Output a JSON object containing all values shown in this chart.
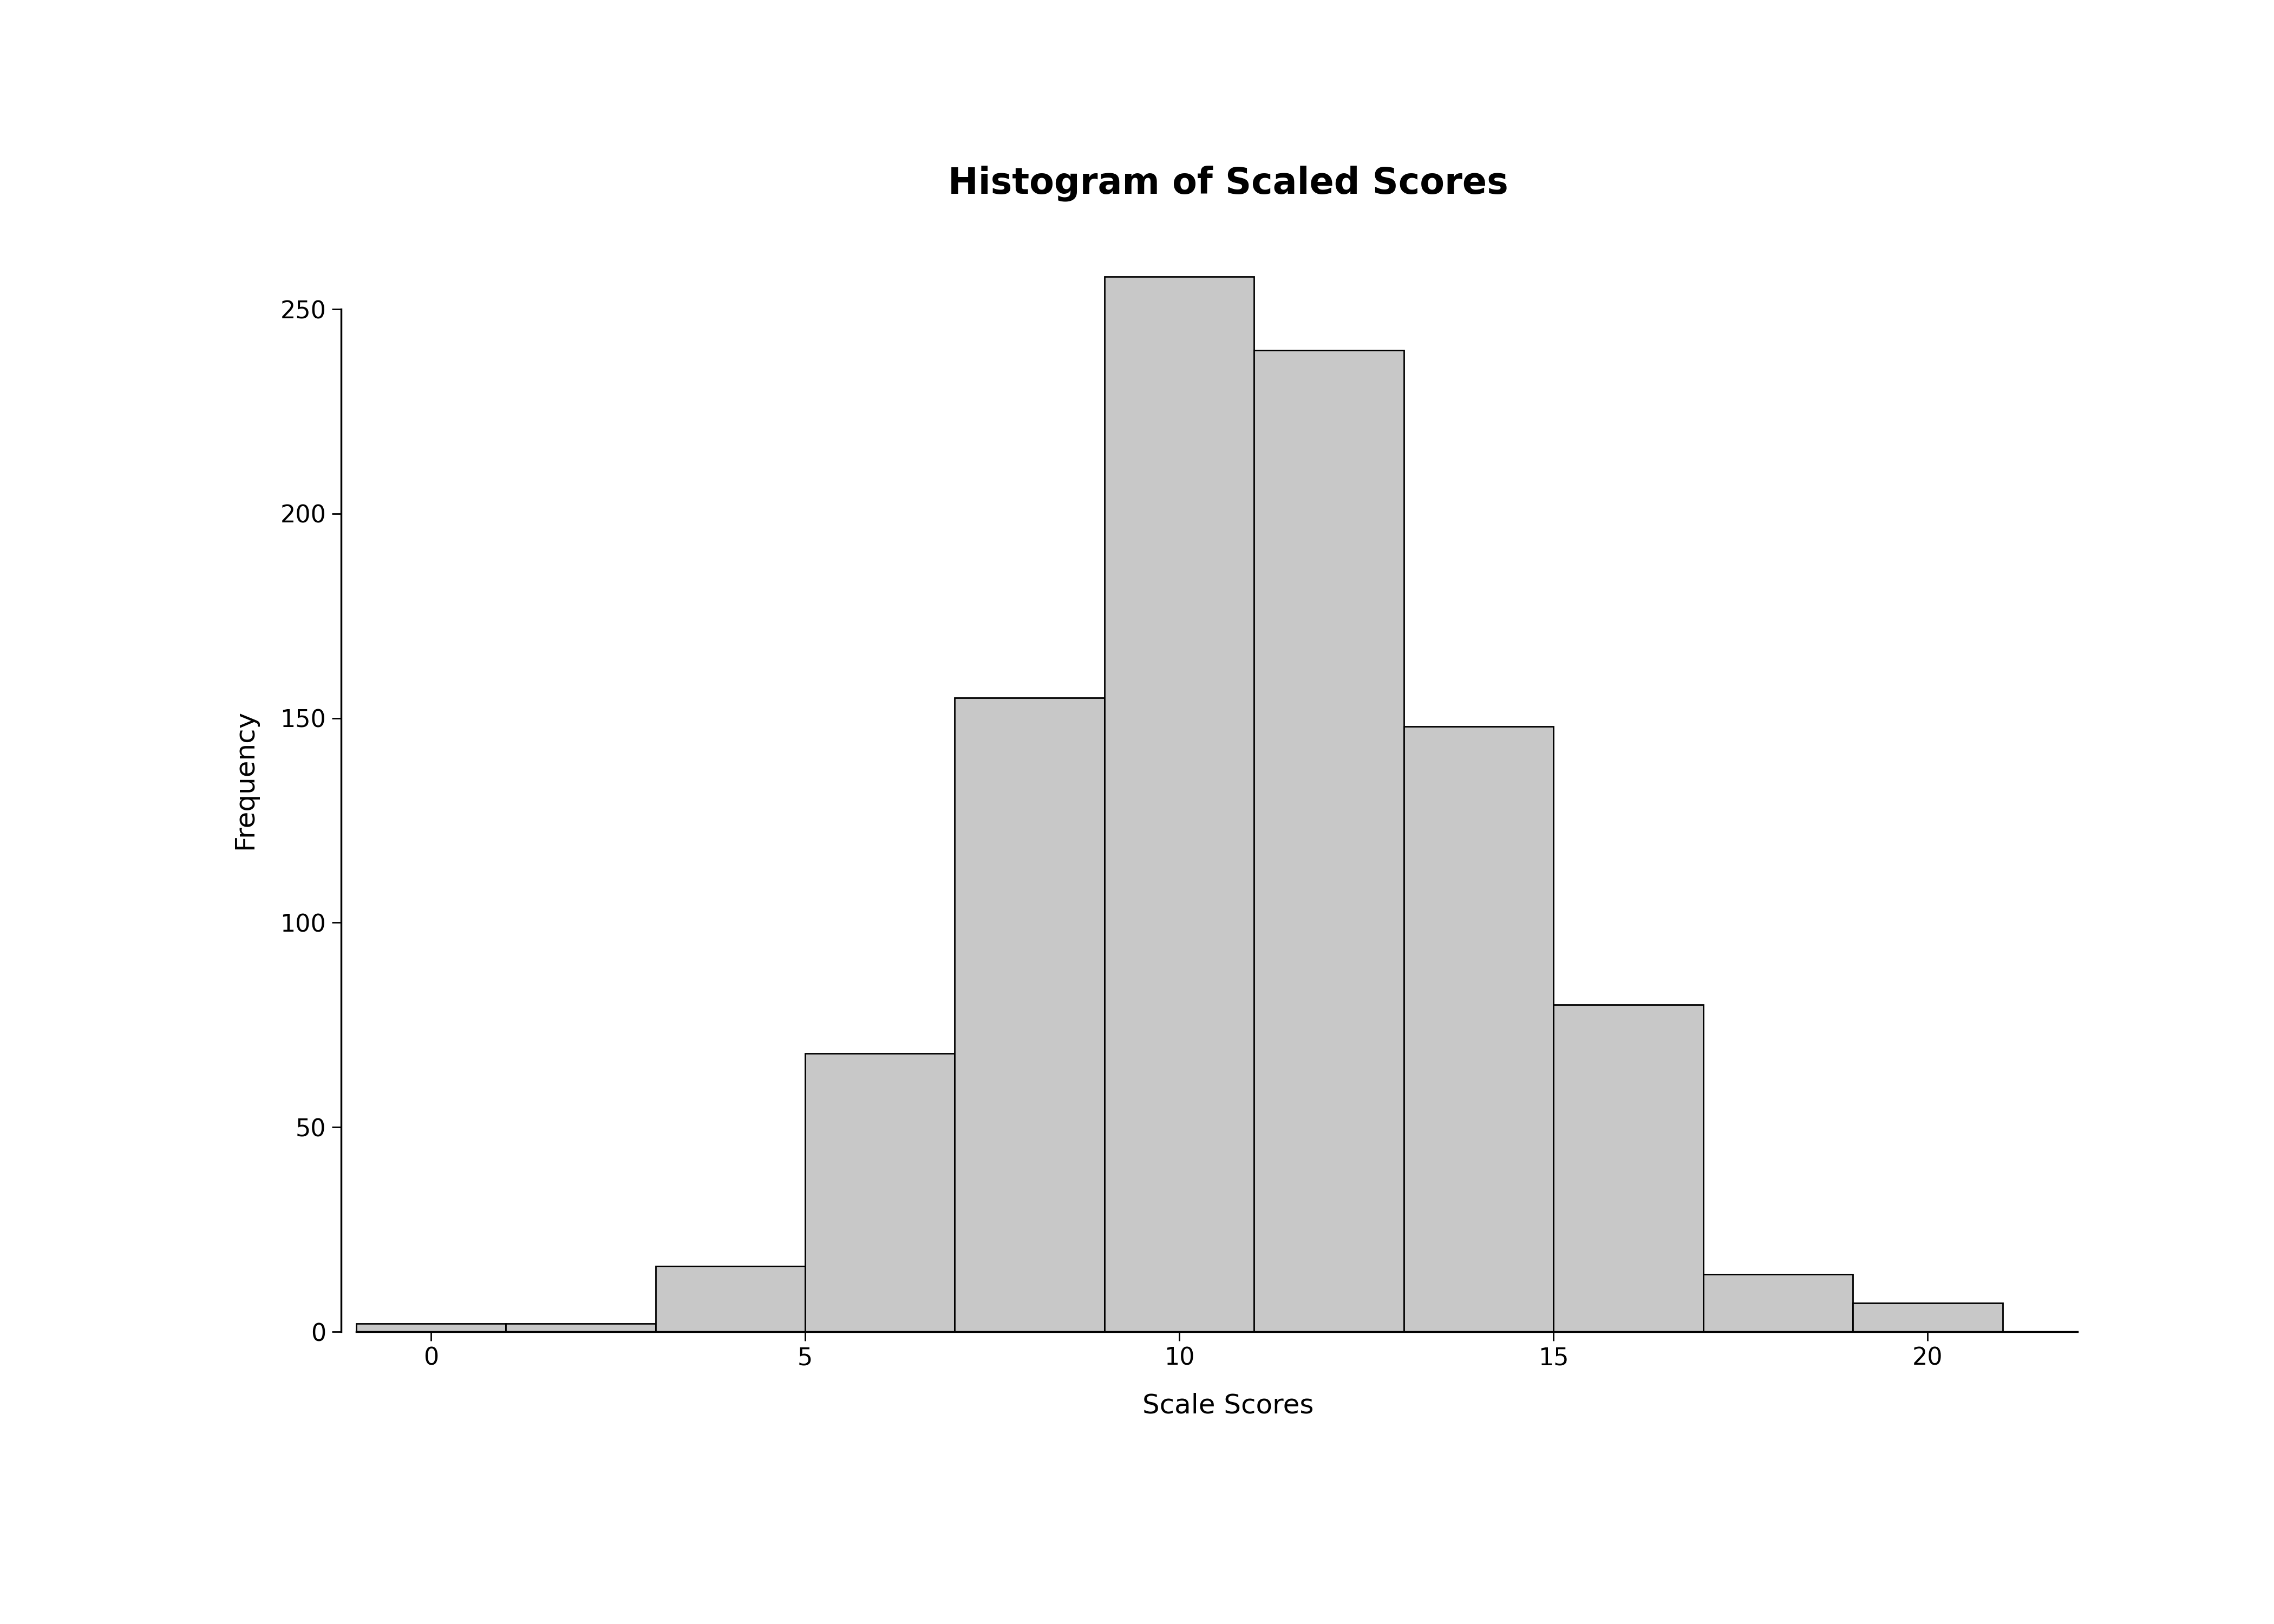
{
  "title": "Histogram of Scaled Scores",
  "xlabel": "Scale Scores",
  "ylabel": "Frequency",
  "bar_color": "#c8c8c8",
  "bar_edge_color": "#000000",
  "bar_edge_width": 2.0,
  "background_color": "#ffffff",
  "title_fontsize": 48,
  "axis_label_fontsize": 36,
  "tick_fontsize": 32,
  "title_fontweight": "bold",
  "xlim": [
    -1.2,
    22.5
  ],
  "ylim": [
    0,
    270
  ],
  "yticks": [
    0,
    50,
    100,
    150,
    200,
    250
  ],
  "xticks": [
    0,
    5,
    10,
    15,
    20
  ],
  "bin_edges": [
    -1,
    1,
    3,
    5,
    7,
    9,
    11,
    13,
    15,
    17,
    19,
    21
  ],
  "frequencies": [
    2,
    2,
    16,
    68,
    155,
    258,
    240,
    148,
    80,
    14,
    7
  ]
}
